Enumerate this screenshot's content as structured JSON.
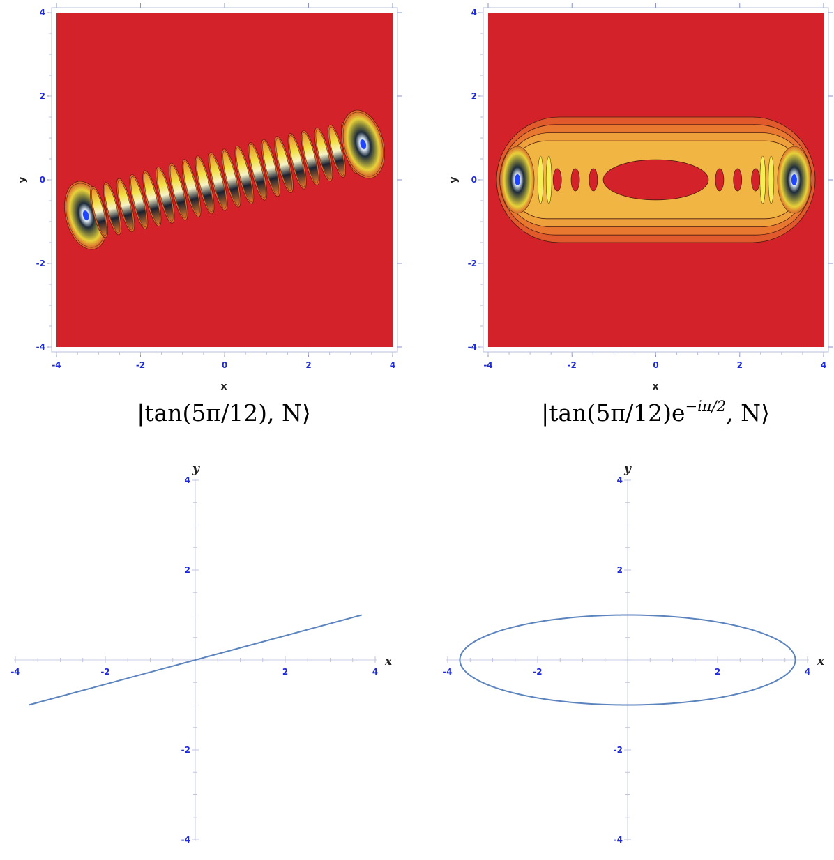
{
  "chart_data": [
    {
      "type": "heatmap",
      "xlabel": "x",
      "ylabel": "y",
      "xlim": [
        -4,
        4
      ],
      "ylim": [
        -4,
        4
      ],
      "xticks": [
        "-4",
        "-2",
        "0",
        "2",
        "4"
      ],
      "yticks": [
        "-4",
        "-2",
        "0",
        "2",
        "4"
      ],
      "caption": "|tan(5π/12), N⟩",
      "background_color": "#d3222a",
      "feature": {
        "kind": "fringe-band",
        "from": [
          -3.3,
          -0.85
        ],
        "to": [
          3.3,
          0.85
        ],
        "fringe_count": 22
      }
    },
    {
      "type": "heatmap",
      "xlabel": "x",
      "ylabel": "y",
      "xlim": [
        -4,
        4
      ],
      "ylim": [
        -4,
        4
      ],
      "xticks": [
        "-4",
        "-2",
        "0",
        "2",
        "4"
      ],
      "yticks": [
        "-4",
        "-2",
        "0",
        "2",
        "4"
      ],
      "caption_main": "|tan(5π/12)e",
      "caption_sup": "−iπ/2",
      "caption_end": ", N⟩",
      "background_color": "#d3222a",
      "feature": {
        "kind": "ellipse-lobe",
        "x_extent": [
          -3.8,
          3.8
        ],
        "y_extent": [
          -1.5,
          1.5
        ],
        "peaks": [
          [
            -3.3,
            0
          ],
          [
            3.3,
            0
          ]
        ]
      }
    },
    {
      "type": "line",
      "xlabel": "x",
      "ylabel": "y",
      "xlim": [
        -4,
        4
      ],
      "ylim": [
        -4,
        4
      ],
      "xticks": [
        "-4",
        "-2",
        "2",
        "4"
      ],
      "yticks": [
        "-4",
        "-2",
        "2",
        "4"
      ],
      "color": "#5b83bd",
      "series": [
        {
          "x": [
            -3.7,
            3.7
          ],
          "y": [
            -1.0,
            1.0
          ]
        }
      ]
    },
    {
      "type": "line",
      "xlabel": "x",
      "ylabel": "y",
      "xlim": [
        -4,
        4
      ],
      "ylim": [
        -4,
        4
      ],
      "xticks": [
        "-4",
        "-2",
        "2",
        "4"
      ],
      "yticks": [
        "-4",
        "-2",
        "2",
        "4"
      ],
      "color": "#5b83bd",
      "series": [
        {
          "kind": "ellipse",
          "center": [
            0,
            0
          ],
          "semi_axes": [
            3.73,
            1.0
          ]
        }
      ]
    }
  ]
}
